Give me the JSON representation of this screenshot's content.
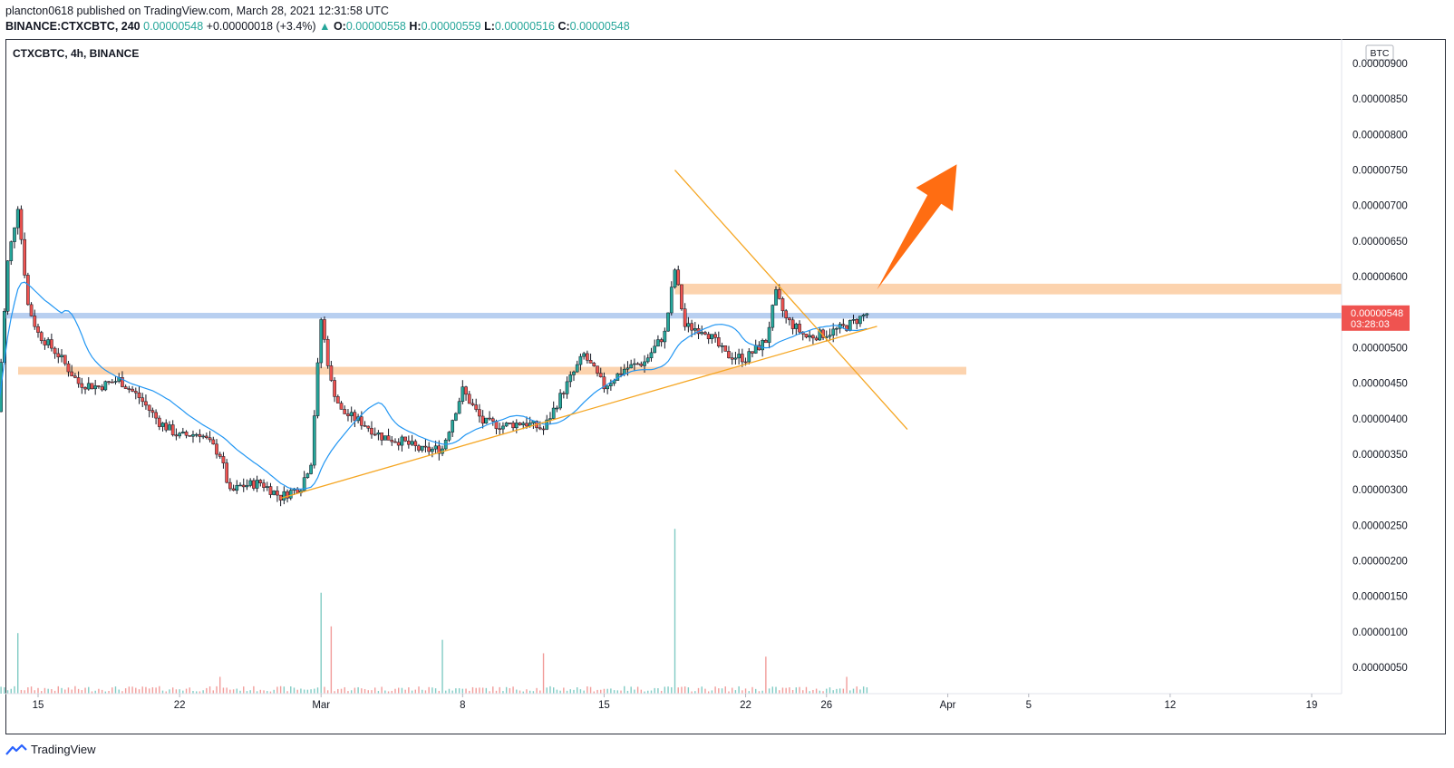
{
  "header": {
    "publisher_line": "plancton0618 published on TradingView.com, March 28, 2021 12:31:58 UTC",
    "symbol_interval": "BINANCE:CTXCBTC, 240",
    "last": "0.00000548",
    "change": "+0.00000018 (+3.4%)",
    "o_label": "O:",
    "o": "0.00000558",
    "h_label": "H:",
    "h": "0.00000559",
    "l_label": "L:",
    "l": "0.00000516",
    "c_label": "C:",
    "c": "0.00000548"
  },
  "footer": {
    "brand": "TradingView",
    "logo_icon": "tradingview-logo-icon"
  },
  "chart_data": {
    "type": "candlestick",
    "title": "CTXCBTC, 4h, BINANCE",
    "currency_label": "BTC",
    "price_tag": {
      "value": "0.00000548",
      "countdown": "03:28:03"
    },
    "y_ticks": [
      "0.00000900",
      "0.00000850",
      "0.00000800",
      "0.00000750",
      "0.00000700",
      "0.00000650",
      "0.00000600",
      "0.00000500",
      "0.00000450",
      "0.00000400",
      "0.00000350",
      "0.00000300",
      "0.00000250",
      "0.00000200",
      "0.00000150",
      "0.00000100",
      "0.00000050"
    ],
    "y_tick_values": [
      900,
      850,
      800,
      750,
      700,
      650,
      600,
      500,
      450,
      400,
      350,
      300,
      250,
      200,
      150,
      100,
      50
    ],
    "price_unit": "1e-8 BTC",
    "x_ticks": [
      {
        "label": "15",
        "date": "2021-02-15"
      },
      {
        "label": "22",
        "date": "2021-02-22"
      },
      {
        "label": "Mar",
        "date": "2021-03-01"
      },
      {
        "label": "8",
        "date": "2021-03-08"
      },
      {
        "label": "15",
        "date": "2021-03-15"
      },
      {
        "label": "22",
        "date": "2021-03-22"
      },
      {
        "label": "26",
        "date": "2021-03-26"
      },
      {
        "label": "Apr",
        "date": "2021-04-01"
      },
      {
        "label": "5",
        "date": "2021-04-05"
      },
      {
        "label": "12",
        "date": "2021-04-12"
      },
      {
        "label": "19",
        "date": "2021-04-19"
      }
    ],
    "close_path": [
      [
        "2021-02-13",
        410
      ],
      [
        "2021-02-13T12",
        620
      ],
      [
        "2021-02-14",
        700
      ],
      [
        "2021-02-14T12",
        560
      ],
      [
        "2021-02-15",
        520
      ],
      [
        "2021-02-16",
        490
      ],
      [
        "2021-02-17",
        450
      ],
      [
        "2021-02-18",
        445
      ],
      [
        "2021-02-19",
        455
      ],
      [
        "2021-02-20",
        430
      ],
      [
        "2021-02-21",
        395
      ],
      [
        "2021-02-22",
        375
      ],
      [
        "2021-02-23",
        380
      ],
      [
        "2021-02-24",
        350
      ],
      [
        "2021-02-24T12",
        295
      ],
      [
        "2021-02-25",
        305
      ],
      [
        "2021-02-26",
        310
      ],
      [
        "2021-02-27",
        290
      ],
      [
        "2021-02-28",
        305
      ],
      [
        "2021-02-28T12",
        340
      ],
      [
        "2021-03-01",
        540
      ],
      [
        "2021-03-01T12",
        450
      ],
      [
        "2021-03-02",
        410
      ],
      [
        "2021-03-03",
        395
      ],
      [
        "2021-03-04",
        375
      ],
      [
        "2021-03-05",
        368
      ],
      [
        "2021-03-06",
        355
      ],
      [
        "2021-03-07",
        358
      ],
      [
        "2021-03-07T12",
        400
      ],
      [
        "2021-03-08",
        440
      ],
      [
        "2021-03-09",
        395
      ],
      [
        "2021-03-10",
        390
      ],
      [
        "2021-03-11",
        395
      ],
      [
        "2021-03-12",
        385
      ],
      [
        "2021-03-13",
        440
      ],
      [
        "2021-03-14",
        490
      ],
      [
        "2021-03-15",
        445
      ],
      [
        "2021-03-16",
        470
      ],
      [
        "2021-03-17",
        480
      ],
      [
        "2021-03-18",
        520
      ],
      [
        "2021-03-18T12",
        610
      ],
      [
        "2021-03-19",
        530
      ],
      [
        "2021-03-20",
        525
      ],
      [
        "2021-03-21",
        490
      ],
      [
        "2021-03-22",
        485
      ],
      [
        "2021-03-23",
        510
      ],
      [
        "2021-03-23T12",
        575
      ],
      [
        "2021-03-24",
        540
      ],
      [
        "2021-03-25",
        515
      ],
      [
        "2021-03-26",
        520
      ],
      [
        "2021-03-27",
        530
      ],
      [
        "2021-03-28",
        548
      ]
    ],
    "volume_spikes": [
      [
        "2021-02-13",
        135
      ],
      [
        "2021-02-14",
        90
      ],
      [
        "2021-02-24",
        25
      ],
      [
        "2021-03-01",
        150
      ],
      [
        "2021-03-01T12",
        100
      ],
      [
        "2021-03-07",
        80
      ],
      [
        "2021-03-12",
        60
      ],
      [
        "2021-03-18T12",
        245
      ],
      [
        "2021-03-23",
        55
      ],
      [
        "2021-03-27",
        25
      ]
    ],
    "volume_baseline": 8,
    "annotations": {
      "resistance_zone": [
        575,
        590
      ],
      "current_zone": [
        541,
        549
      ],
      "support_zone": [
        462,
        473
      ],
      "ascending_trendline": [
        [
          "2021-02-27",
          288
        ],
        [
          "2021-03-28T12",
          530
        ]
      ],
      "descending_trendline": [
        [
          "2021-03-18T12",
          750
        ],
        [
          "2021-03-30",
          385
        ]
      ],
      "arrow": "up-right"
    },
    "colors": {
      "up": "#26a69a",
      "down": "#ef5350",
      "ma": "#2196f3",
      "resistance": "#fcd3ae",
      "current": "#b8cff0",
      "trend": "#f5a623",
      "arrow": "#ff6d12",
      "tag": "#ef5350"
    }
  }
}
